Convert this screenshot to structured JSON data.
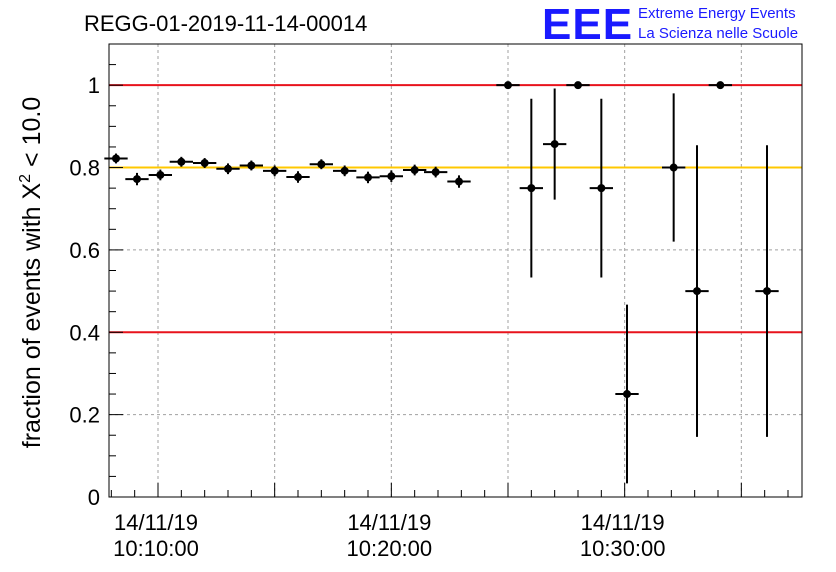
{
  "chart_data": {
    "type": "scatter",
    "title": "REGG-01-2019-11-14-00014",
    "ylabel_main": "fraction of events with X",
    "ylabel_sup": "2",
    "ylabel_tail": " < 10.0",
    "xlabel": "",
    "ylim": [
      0,
      1.1
    ],
    "yticks": [
      "0",
      "0.2",
      "0.4",
      "0.6",
      "0.8",
      "1"
    ],
    "ytick_values": [
      0,
      0.2,
      0.4,
      0.6,
      0.8,
      1.0
    ],
    "xlim_minutes": [
      -2.1,
      27.6
    ],
    "xticks": [
      {
        "minute": 0,
        "date": "14/11/19",
        "time": "10:10:00"
      },
      {
        "minute": 10,
        "date": "14/11/19",
        "time": "10:20:00"
      },
      {
        "minute": 20,
        "date": "14/11/19",
        "time": "10:30:00"
      }
    ],
    "grid": true,
    "reference_lines": [
      {
        "y": 1.0,
        "color": "#e8131c"
      },
      {
        "y": 0.8,
        "color": "#ffc800"
      },
      {
        "y": 0.4,
        "color": "#e8131c"
      }
    ],
    "point_color": "#000000",
    "points": [
      {
        "x": -1.8,
        "y": 0.822,
        "err": 0.012
      },
      {
        "x": -0.9,
        "y": 0.772,
        "err": 0.015
      },
      {
        "x": 0.1,
        "y": 0.782,
        "err": 0.013
      },
      {
        "x": 1.0,
        "y": 0.814,
        "err": 0.012
      },
      {
        "x": 2.0,
        "y": 0.811,
        "err": 0.012
      },
      {
        "x": 3.0,
        "y": 0.797,
        "err": 0.013
      },
      {
        "x": 4.0,
        "y": 0.805,
        "err": 0.012
      },
      {
        "x": 5.0,
        "y": 0.792,
        "err": 0.013
      },
      {
        "x": 6.0,
        "y": 0.777,
        "err": 0.014
      },
      {
        "x": 7.0,
        "y": 0.808,
        "err": 0.012
      },
      {
        "x": 8.0,
        "y": 0.792,
        "err": 0.013
      },
      {
        "x": 9.0,
        "y": 0.776,
        "err": 0.014
      },
      {
        "x": 10.0,
        "y": 0.779,
        "err": 0.014
      },
      {
        "x": 11.0,
        "y": 0.794,
        "err": 0.013
      },
      {
        "x": 11.9,
        "y": 0.789,
        "err": 0.013
      },
      {
        "x": 12.9,
        "y": 0.766,
        "err": 0.015
      },
      {
        "x": 15.0,
        "y": 1.0,
        "err": 0.0
      },
      {
        "x": 16.0,
        "y": 0.75,
        "err": 0.217
      },
      {
        "x": 17.0,
        "y": 0.857,
        "err": 0.135
      },
      {
        "x": 18.0,
        "y": 1.0,
        "err": 0.0
      },
      {
        "x": 19.0,
        "y": 0.75,
        "err": 0.217
      },
      {
        "x": 20.1,
        "y": 0.25,
        "err": 0.217
      },
      {
        "x": 22.1,
        "y": 0.8,
        "err": 0.18
      },
      {
        "x": 23.1,
        "y": 0.5,
        "err": 0.354
      },
      {
        "x": 24.1,
        "y": 1.0,
        "err": 0.0
      },
      {
        "x": 26.1,
        "y": 0.5,
        "err": 0.354
      }
    ],
    "xerr_minutes": 0.5
  },
  "logo": {
    "big": "EEE",
    "line1": "Extreme Energy Events",
    "line2": "La Scienza nelle Scuole"
  },
  "colors": {
    "logo": "#1a1aff",
    "grid": "#a0a0a0"
  }
}
